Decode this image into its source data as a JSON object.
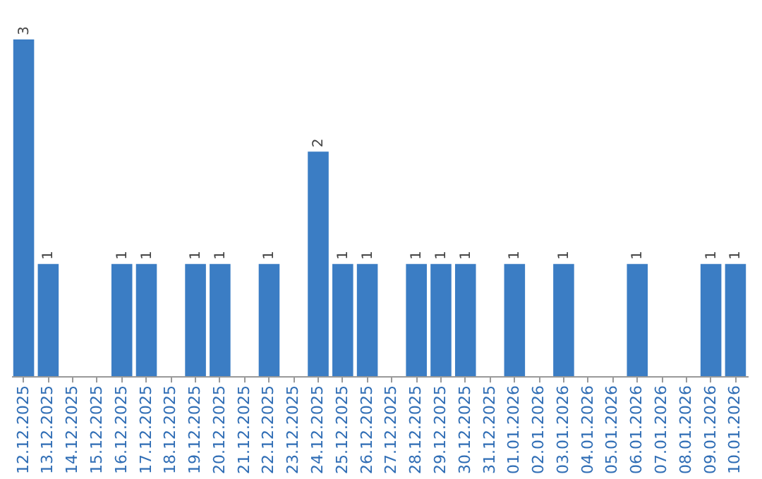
{
  "chart_data": {
    "type": "bar",
    "categories": [
      "12.12.2025",
      "13.12.2025",
      "14.12.2025",
      "15.12.2025",
      "16.12.2025",
      "17.12.2025",
      "18.12.2025",
      "19.12.2025",
      "20.12.2025",
      "21.12.2025",
      "22.12.2025",
      "23.12.2025",
      "24.12.2025",
      "25.12.2025",
      "26.12.2025",
      "27.12.2025",
      "28.12.2025",
      "29.12.2025",
      "30.12.2025",
      "31.12.2025",
      "01.01.2026",
      "02.01.2026",
      "03.01.2026",
      "04.01.2026",
      "05.01.2026",
      "06.01.2026",
      "07.01.2026",
      "08.01.2026",
      "09.01.2026",
      "10.01.2026"
    ],
    "values": [
      3,
      1,
      0,
      0,
      1,
      1,
      0,
      1,
      1,
      0,
      1,
      0,
      2,
      1,
      1,
      0,
      1,
      1,
      1,
      0,
      1,
      0,
      1,
      0,
      0,
      1,
      0,
      0,
      1,
      1
    ],
    "value_labels": [
      "3",
      "1",
      null,
      null,
      "1",
      "1",
      null,
      "1",
      "1",
      null,
      "1",
      null,
      "2",
      "1",
      "1",
      null,
      "1",
      "1",
      "1",
      null,
      "1",
      null,
      "1",
      null,
      null,
      "1",
      null,
      null,
      "1",
      "1"
    ],
    "color": "#3b7dc4",
    "grid": false
  }
}
